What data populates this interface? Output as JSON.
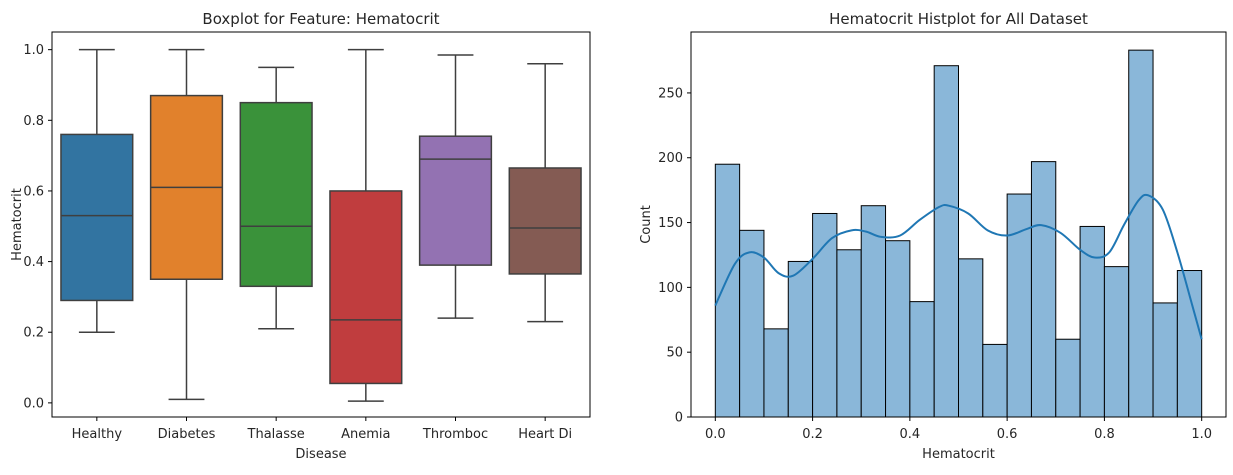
{
  "chart_data": [
    {
      "type": "box",
      "title": "Boxplot for Feature: Hematocrit",
      "xlabel": "Disease",
      "ylabel": "Hematocrit",
      "ylim": [
        -0.04,
        1.05
      ],
      "yticks": [
        "0.0",
        "0.2",
        "0.4",
        "0.6",
        "0.8",
        "1.0"
      ],
      "categories": [
        "Healthy",
        "Diabetes",
        "Thalasse",
        "Anemia",
        "Thromboc",
        "Heart Di"
      ],
      "colors": [
        "#3274a1",
        "#e1812c",
        "#3a923a",
        "#c03d3e",
        "#9372b2",
        "#845b53"
      ],
      "boxes": [
        {
          "whisker_low": 0.2,
          "q1": 0.29,
          "median": 0.53,
          "q3": 0.76,
          "whisker_high": 1.0
        },
        {
          "whisker_low": 0.01,
          "q1": 0.35,
          "median": 0.61,
          "q3": 0.87,
          "whisker_high": 1.0
        },
        {
          "whisker_low": 0.21,
          "q1": 0.33,
          "median": 0.5,
          "q3": 0.85,
          "whisker_high": 0.95
        },
        {
          "whisker_low": 0.005,
          "q1": 0.055,
          "median": 0.235,
          "q3": 0.6,
          "whisker_high": 1.0
        },
        {
          "whisker_low": 0.24,
          "q1": 0.39,
          "median": 0.69,
          "q3": 0.755,
          "whisker_high": 0.985
        },
        {
          "whisker_low": 0.23,
          "q1": 0.365,
          "median": 0.495,
          "q3": 0.665,
          "whisker_high": 0.96
        }
      ]
    },
    {
      "type": "histogram",
      "title": "Hematocrit Histplot for All Dataset",
      "xlabel": "Hematocrit",
      "ylabel": "Count",
      "xlim": [
        -0.05,
        1.05
      ],
      "ylim": [
        0,
        297
      ],
      "xticks": [
        "0.0",
        "0.2",
        "0.4",
        "0.6",
        "0.8",
        "1.0"
      ],
      "yticks": [
        "0",
        "50",
        "100",
        "150",
        "200",
        "250"
      ],
      "bar_color": "#8ab7d9",
      "kde_color": "#1f77b4",
      "bins": [
        {
          "start": 0.0,
          "end": 0.05,
          "count": 195
        },
        {
          "start": 0.05,
          "end": 0.1,
          "count": 144
        },
        {
          "start": 0.1,
          "end": 0.15,
          "count": 68
        },
        {
          "start": 0.15,
          "end": 0.2,
          "count": 120
        },
        {
          "start": 0.2,
          "end": 0.25,
          "count": 157
        },
        {
          "start": 0.25,
          "end": 0.3,
          "count": 129
        },
        {
          "start": 0.3,
          "end": 0.35,
          "count": 163
        },
        {
          "start": 0.35,
          "end": 0.4,
          "count": 136
        },
        {
          "start": 0.4,
          "end": 0.45,
          "count": 89
        },
        {
          "start": 0.45,
          "end": 0.5,
          "count": 271
        },
        {
          "start": 0.5,
          "end": 0.55,
          "count": 122
        },
        {
          "start": 0.55,
          "end": 0.6,
          "count": 56
        },
        {
          "start": 0.6,
          "end": 0.65,
          "count": 172
        },
        {
          "start": 0.65,
          "end": 0.7,
          "count": 197
        },
        {
          "start": 0.7,
          "end": 0.75,
          "count": 60
        },
        {
          "start": 0.75,
          "end": 0.8,
          "count": 147
        },
        {
          "start": 0.8,
          "end": 0.85,
          "count": 116
        },
        {
          "start": 0.85,
          "end": 0.9,
          "count": 283
        },
        {
          "start": 0.9,
          "end": 0.95,
          "count": 88
        },
        {
          "start": 0.95,
          "end": 1.0,
          "count": 113
        }
      ],
      "kde": {
        "x": [
          0.0,
          0.04,
          0.07,
          0.1,
          0.13,
          0.16,
          0.2,
          0.24,
          0.28,
          0.31,
          0.34,
          0.38,
          0.42,
          0.46,
          0.48,
          0.52,
          0.56,
          0.6,
          0.64,
          0.67,
          0.71,
          0.75,
          0.78,
          0.81,
          0.84,
          0.87,
          0.89,
          0.92,
          0.95,
          0.98,
          1.0
        ],
        "y": [
          86,
          118,
          127,
          123,
          111,
          109,
          122,
          138,
          144,
          143,
          139,
          140,
          152,
          162,
          163,
          157,
          144,
          140,
          145,
          148,
          142,
          129,
          123,
          127,
          148,
          167,
          171,
          160,
          127,
          87,
          60
        ]
      }
    }
  ]
}
